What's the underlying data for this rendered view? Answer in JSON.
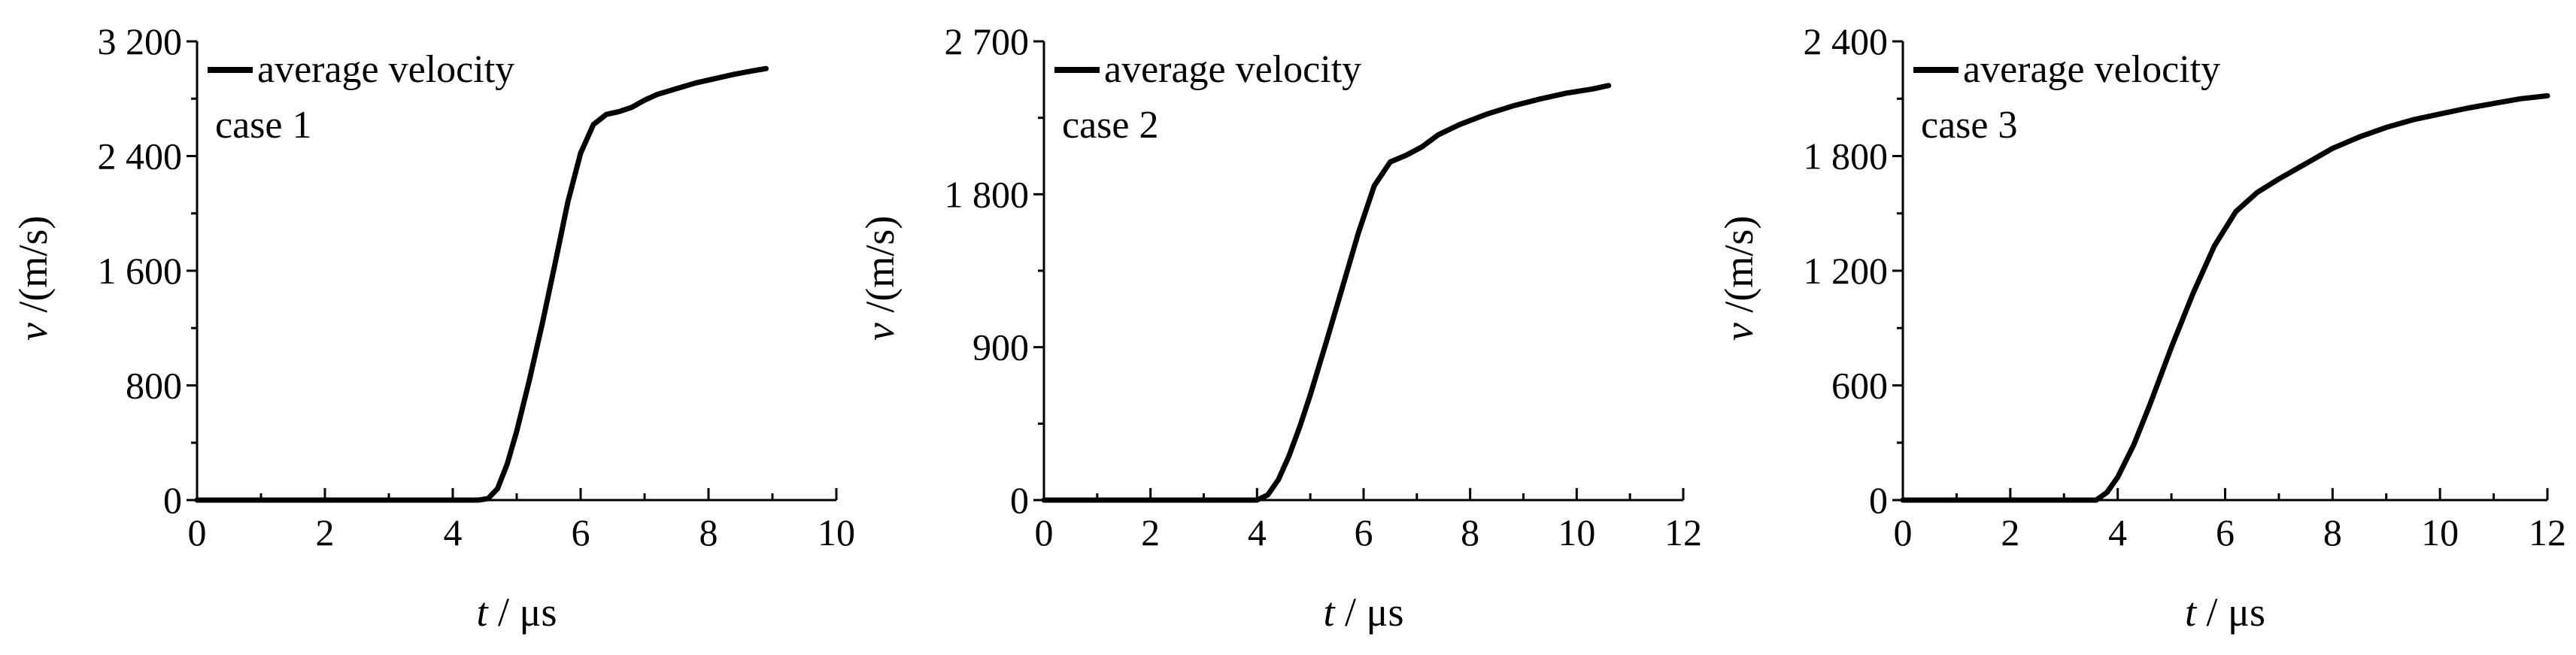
{
  "chart_data": [
    {
      "type": "line",
      "xlabel_var": "t",
      "xlabel_unit": " / μs",
      "ylabel_var": "v",
      "ylabel_unit": " /(m/s)",
      "xlim": [
        0,
        10
      ],
      "ylim": [
        0,
        3200
      ],
      "xticks": [
        0,
        2,
        4,
        6,
        8,
        10
      ],
      "xtick_labels": [
        "0",
        "2",
        "4",
        "6",
        "8",
        "10"
      ],
      "yticks": [
        0,
        800,
        1600,
        2400,
        3200
      ],
      "ytick_labels": [
        "0",
        "800",
        "1 600",
        "2 400",
        "3 200"
      ],
      "legend": "top-left",
      "annotation": "case 1",
      "series": [
        {
          "name": "average velocity",
          "x": [
            0,
            4.4,
            4.55,
            4.7,
            4.85,
            5.0,
            5.2,
            5.4,
            5.6,
            5.8,
            6.0,
            6.2,
            6.4,
            6.6,
            6.8,
            7.0,
            7.2,
            7.5,
            7.8,
            8.1,
            8.4,
            8.7,
            8.9
          ],
          "y": [
            0,
            0,
            10,
            80,
            250,
            480,
            840,
            1230,
            1650,
            2080,
            2420,
            2620,
            2690,
            2710,
            2740,
            2790,
            2830,
            2870,
            2910,
            2940,
            2970,
            2995,
            3010
          ]
        }
      ]
    },
    {
      "type": "line",
      "xlabel_var": "t",
      "xlabel_unit": " / μs",
      "ylabel_var": "v",
      "ylabel_unit": " /(m/s)",
      "xlim": [
        0,
        12
      ],
      "ylim": [
        0,
        2700
      ],
      "xticks": [
        0,
        2,
        4,
        6,
        8,
        10,
        12
      ],
      "xtick_labels": [
        "0",
        "2",
        "4",
        "6",
        "8",
        "10",
        "12"
      ],
      "yticks": [
        0,
        900,
        1800,
        2700
      ],
      "ytick_labels": [
        "0",
        "900",
        "1 800",
        "2 700"
      ],
      "legend": "top-left",
      "annotation": "case 2",
      "series": [
        {
          "name": "average velocity",
          "x": [
            0,
            4.0,
            4.2,
            4.4,
            4.6,
            4.8,
            5.0,
            5.3,
            5.6,
            5.9,
            6.2,
            6.5,
            6.8,
            7.1,
            7.4,
            7.8,
            8.3,
            8.8,
            9.3,
            9.8,
            10.3,
            10.6
          ],
          "y": [
            0,
            0,
            30,
            120,
            260,
            430,
            620,
            930,
            1250,
            1570,
            1850,
            1990,
            2030,
            2080,
            2150,
            2210,
            2270,
            2320,
            2360,
            2395,
            2420,
            2440
          ]
        }
      ]
    },
    {
      "type": "line",
      "xlabel_var": "t",
      "xlabel_unit": " / μs",
      "ylabel_var": "v",
      "ylabel_unit": " /(m/s)",
      "xlim": [
        0,
        12
      ],
      "ylim": [
        0,
        2400
      ],
      "xticks": [
        0,
        2,
        4,
        6,
        8,
        10,
        12
      ],
      "xtick_labels": [
        "0",
        "2",
        "4",
        "6",
        "8",
        "10",
        "12"
      ],
      "yticks": [
        0,
        600,
        1200,
        1800,
        2400
      ],
      "ytick_labels": [
        "0",
        "600",
        "1 200",
        "1 800",
        "2 400"
      ],
      "legend": "top-left",
      "annotation": "case 3",
      "series": [
        {
          "name": "average velocity",
          "x": [
            0,
            3.6,
            3.8,
            4.0,
            4.3,
            4.6,
            5.0,
            5.4,
            5.8,
            6.2,
            6.6,
            7.0,
            7.5,
            8.0,
            8.5,
            9.0,
            9.5,
            10.0,
            10.5,
            11.0,
            11.5,
            12.0
          ],
          "y": [
            0,
            0,
            40,
            120,
            290,
            500,
            800,
            1080,
            1330,
            1510,
            1610,
            1680,
            1760,
            1840,
            1900,
            1950,
            1990,
            2020,
            2050,
            2075,
            2100,
            2115
          ]
        }
      ]
    }
  ]
}
